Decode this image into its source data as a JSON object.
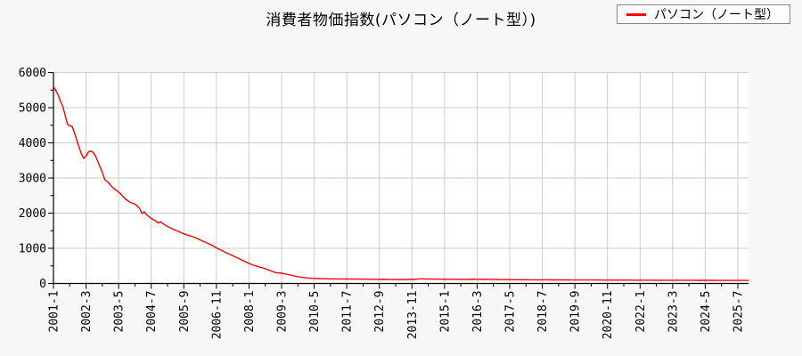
{
  "title": "消費者物価指数(パソコン（ノート型）)",
  "legend": {
    "label": "パソコン（ノート型）",
    "color": "#ff0000"
  },
  "colors": {
    "background": "#f7f7f7",
    "plot_background": "#ffffff",
    "grid": "#cccccc",
    "axis": "#000000",
    "series": "#ff0000"
  },
  "chart_data": {
    "type": "line",
    "title": "消費者物価指数(パソコン（ノート型）)",
    "x_start": "2001-01",
    "x_end": "2025-12",
    "frequency": "monthly",
    "x_tick_labels": [
      "2001-1",
      "2002-3",
      "2003-5",
      "2004-7",
      "2005-9",
      "2006-11",
      "2008-1",
      "2009-3",
      "2010-5",
      "2011-7",
      "2012-9",
      "2013-11",
      "2015-1",
      "2016-3",
      "2017-5",
      "2018-7",
      "2019-9",
      "2020-11",
      "2022-1",
      "2023-3",
      "2024-5",
      "2025-7"
    ],
    "x_tick_interval_months": 14,
    "x_minor_tick_interval_months": 7,
    "ylim": [
      0,
      6000
    ],
    "y_major_ticks": [
      0,
      1000,
      2000,
      3000,
      4000,
      5000,
      6000
    ],
    "y_minor_step": 500,
    "grid": true,
    "legend_position": "top-right",
    "series": [
      {
        "name": "パソコン（ノート型）",
        "color": "#ff0000",
        "values": [
          5610,
          5490,
          5370,
          5190,
          5040,
          4790,
          4540,
          4480,
          4470,
          4300,
          4090,
          3880,
          3690,
          3560,
          3620,
          3740,
          3770,
          3730,
          3640,
          3480,
          3320,
          3160,
          2960,
          2900,
          2840,
          2760,
          2700,
          2650,
          2600,
          2540,
          2460,
          2400,
          2350,
          2310,
          2280,
          2260,
          2200,
          2140,
          1990,
          2040,
          1960,
          1900,
          1850,
          1810,
          1780,
          1720,
          1760,
          1700,
          1660,
          1620,
          1590,
          1560,
          1530,
          1500,
          1470,
          1440,
          1410,
          1390,
          1370,
          1350,
          1330,
          1300,
          1270,
          1240,
          1210,
          1180,
          1150,
          1120,
          1090,
          1050,
          1010,
          980,
          950,
          915,
          880,
          850,
          820,
          790,
          760,
          730,
          700,
          665,
          635,
          600,
          570,
          545,
          520,
          500,
          475,
          455,
          440,
          420,
          395,
          370,
          345,
          320,
          305,
          298,
          292,
          280,
          265,
          250,
          235,
          220,
          205,
          192,
          182,
          172,
          165,
          158,
          152,
          148,
          144,
          141,
          138,
          136,
          134,
          133,
          132,
          131,
          130,
          130,
          129,
          129,
          128,
          128,
          127,
          127,
          126,
          126,
          125,
          125,
          124,
          123,
          122,
          121,
          120,
          119,
          118,
          117,
          116,
          115,
          114,
          113,
          112,
          112,
          111,
          111,
          110,
          110,
          110,
          111,
          112,
          113,
          115,
          118,
          122,
          128,
          133,
          131,
          129,
          127,
          126,
          125,
          124,
          123,
          122,
          121,
          120,
          120,
          119,
          119,
          118,
          118,
          117,
          117,
          116,
          116,
          115,
          115,
          114,
          124,
          119,
          116,
          114,
          113,
          113,
          112,
          112,
          111,
          111,
          110,
          110,
          110,
          109,
          109,
          108,
          108,
          108,
          107,
          107,
          107,
          106,
          106,
          106,
          105,
          105,
          105,
          104,
          104,
          104,
          103,
          103,
          103,
          102,
          102,
          102,
          102,
          101,
          101,
          101,
          100,
          100,
          100,
          100,
          99,
          99,
          99,
          99,
          99,
          98,
          98,
          98,
          98,
          98,
          97,
          97,
          97,
          97,
          97,
          96,
          96,
          96,
          96,
          95,
          95,
          95,
          95,
          95,
          94,
          94,
          94,
          94,
          94,
          93,
          93,
          93,
          93,
          93,
          92,
          92,
          92,
          92,
          92,
          92,
          91,
          91,
          91,
          91,
          91,
          90,
          90,
          90,
          90,
          90,
          90,
          89,
          89,
          89,
          89,
          88,
          88,
          88,
          88,
          88,
          87,
          87,
          87,
          87,
          87,
          86,
          86,
          86,
          86,
          86,
          85,
          85,
          85,
          85,
          85
        ]
      }
    ]
  }
}
